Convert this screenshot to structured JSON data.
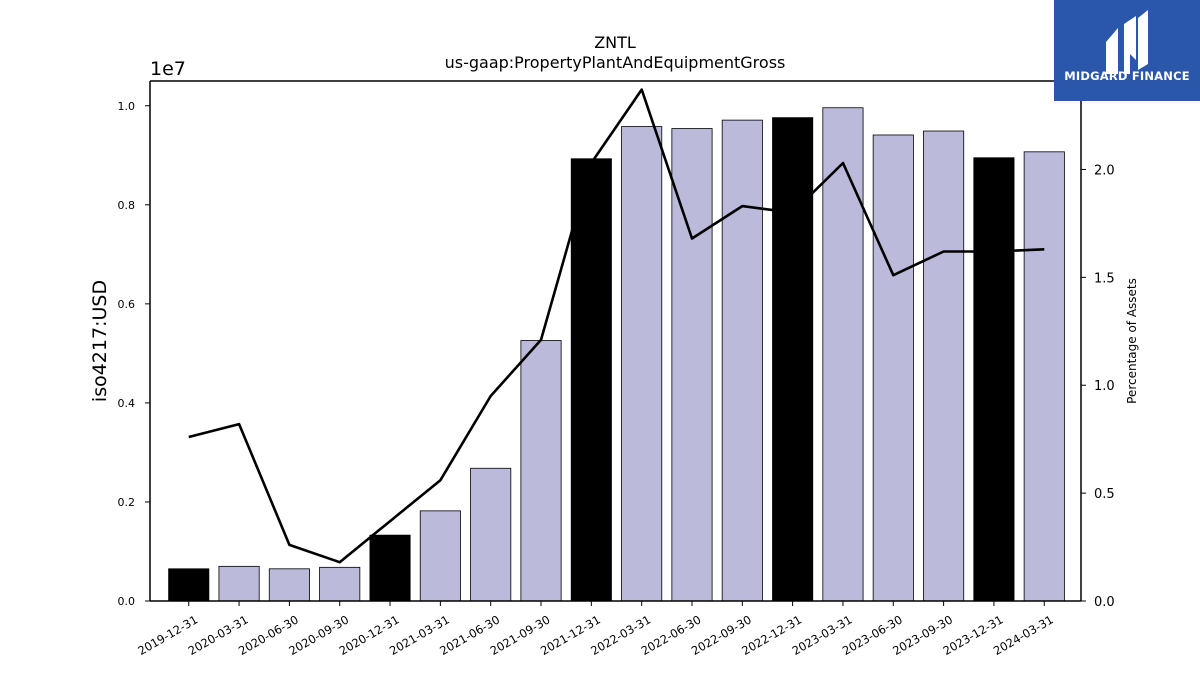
{
  "chart_data": {
    "type": "bar",
    "title": "ZNTL",
    "subtitle": "us-gaap:PropertyPlantAndEquipmentGross",
    "ylabel": "iso4217:USD",
    "y_offset_label": "1e7",
    "y2label": "Percentage of Assets",
    "categories": [
      "2019-12-31",
      "2020-03-31",
      "2020-06-30",
      "2020-09-30",
      "2020-12-31",
      "2021-03-31",
      "2021-06-30",
      "2021-09-30",
      "2021-12-31",
      "2022-03-31",
      "2022-06-30",
      "2022-09-30",
      "2022-12-31",
      "2023-03-31",
      "2023-06-30",
      "2023-09-30",
      "2023-12-31",
      "2024-03-31"
    ],
    "series": [
      {
        "kind": "bar",
        "axis": "left",
        "values": [
          650000,
          700000,
          650000,
          680000,
          1330000,
          1820000,
          2680000,
          5260000,
          8930000,
          9580000,
          9540000,
          9710000,
          9760000,
          9960000,
          9410000,
          9490000,
          8950000,
          9070000
        ]
      },
      {
        "kind": "line",
        "axis": "right",
        "values": [
          0.76,
          0.82,
          0.26,
          0.18,
          0.37,
          0.56,
          0.95,
          1.21,
          2.03,
          2.37,
          1.68,
          1.83,
          1.8,
          2.03,
          1.51,
          1.62,
          1.62,
          1.63
        ]
      }
    ],
    "highlight_categories": [
      "2019-12-31",
      "2020-12-31",
      "2021-12-31",
      "2022-12-31",
      "2023-12-31"
    ],
    "yticks": [
      "0.0",
      "0.2",
      "0.4",
      "0.6",
      "0.8",
      "1.0"
    ],
    "y2ticks": [
      "0.0",
      "0.5",
      "1.0",
      "1.5",
      "2.0"
    ],
    "ylim": [
      0,
      10500000
    ],
    "y2lim": [
      0,
      2.41
    ],
    "grid": false,
    "colors": {
      "bar": "#bcbadb",
      "bar_highlight": "#000000",
      "line": "#000000"
    }
  },
  "logo": {
    "text": "MIDGARD FINANCE",
    "background": "#2a57aa"
  }
}
